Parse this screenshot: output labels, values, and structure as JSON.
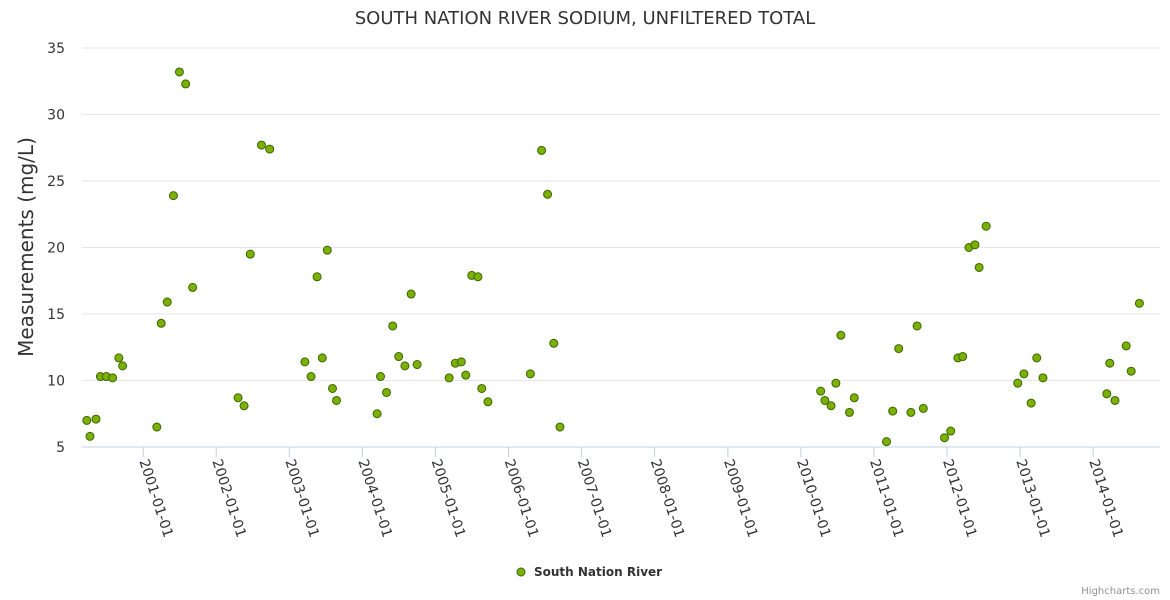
{
  "chart_data": {
    "type": "scatter",
    "title": "SOUTH NATION RIVER SODIUM, UNFILTERED TOTAL",
    "ylabel": "Measurements (mg/L)",
    "xlabel": "",
    "ylim": [
      5,
      35
    ],
    "yticks": [
      5,
      10,
      15,
      20,
      25,
      30,
      35
    ],
    "xlim": [
      "2000-03-01",
      "2014-12-01"
    ],
    "xticks": [
      "2001-01-01",
      "2002-01-01",
      "2003-01-01",
      "2004-01-01",
      "2005-01-01",
      "2006-01-01",
      "2007-01-01",
      "2008-01-01",
      "2009-01-01",
      "2010-01-01",
      "2011-01-01",
      "2012-01-01",
      "2013-01-01",
      "2014-01-01"
    ],
    "grid": true,
    "legend_position": "bottom-center",
    "marker_color": "#7cb005",
    "marker_stroke": "#3a6600",
    "series": [
      {
        "name": "South Nation River",
        "points": [
          [
            "2000-03-25",
            7.0
          ],
          [
            "2000-04-10",
            5.8
          ],
          [
            "2000-05-10",
            7.1
          ],
          [
            "2000-06-01",
            10.3
          ],
          [
            "2000-07-01",
            10.3
          ],
          [
            "2000-08-01",
            10.2
          ],
          [
            "2000-09-01",
            11.7
          ],
          [
            "2000-09-20",
            11.1
          ],
          [
            "2001-03-10",
            6.5
          ],
          [
            "2001-04-01",
            14.3
          ],
          [
            "2001-05-01",
            15.9
          ],
          [
            "2001-06-01",
            23.9
          ],
          [
            "2001-07-01",
            33.2
          ],
          [
            "2001-08-01",
            32.3
          ],
          [
            "2001-09-05",
            17.0
          ],
          [
            "2002-04-20",
            8.7
          ],
          [
            "2002-05-20",
            8.1
          ],
          [
            "2002-06-20",
            19.5
          ],
          [
            "2002-08-15",
            27.7
          ],
          [
            "2002-09-25",
            27.4
          ],
          [
            "2003-03-20",
            11.4
          ],
          [
            "2003-04-20",
            10.3
          ],
          [
            "2003-05-20",
            17.8
          ],
          [
            "2003-06-15",
            11.7
          ],
          [
            "2003-07-10",
            19.8
          ],
          [
            "2003-08-05",
            9.4
          ],
          [
            "2003-08-25",
            8.5
          ],
          [
            "2004-03-15",
            7.5
          ],
          [
            "2004-04-01",
            10.3
          ],
          [
            "2004-05-01",
            9.1
          ],
          [
            "2004-06-01",
            14.1
          ],
          [
            "2004-07-01",
            11.8
          ],
          [
            "2004-08-01",
            11.1
          ],
          [
            "2004-09-01",
            16.5
          ],
          [
            "2004-10-01",
            11.2
          ],
          [
            "2005-03-10",
            10.2
          ],
          [
            "2005-04-10",
            11.3
          ],
          [
            "2005-05-10",
            11.4
          ],
          [
            "2005-06-01",
            10.4
          ],
          [
            "2005-07-01",
            17.9
          ],
          [
            "2005-08-01",
            17.8
          ],
          [
            "2005-08-20",
            9.4
          ],
          [
            "2005-09-20",
            8.4
          ],
          [
            "2006-04-20",
            10.5
          ],
          [
            "2006-06-15",
            27.3
          ],
          [
            "2006-07-15",
            24.0
          ],
          [
            "2006-08-15",
            12.8
          ],
          [
            "2006-09-15",
            6.5
          ],
          [
            "2010-04-10",
            9.2
          ],
          [
            "2010-05-01",
            8.5
          ],
          [
            "2010-06-01",
            8.1
          ],
          [
            "2010-06-25",
            9.8
          ],
          [
            "2010-07-20",
            13.4
          ],
          [
            "2010-09-01",
            7.6
          ],
          [
            "2010-09-25",
            8.7
          ],
          [
            "2011-03-05",
            5.4
          ],
          [
            "2011-04-05",
            7.7
          ],
          [
            "2011-05-05",
            12.4
          ],
          [
            "2011-07-05",
            7.6
          ],
          [
            "2011-08-05",
            14.1
          ],
          [
            "2011-09-05",
            7.9
          ],
          [
            "2011-12-20",
            5.7
          ],
          [
            "2012-01-20",
            6.2
          ],
          [
            "2012-02-25",
            11.7
          ],
          [
            "2012-03-20",
            11.8
          ],
          [
            "2012-04-20",
            20.0
          ],
          [
            "2012-05-20",
            20.2
          ],
          [
            "2012-06-10",
            18.5
          ],
          [
            "2012-07-15",
            21.6
          ],
          [
            "2012-12-20",
            9.8
          ],
          [
            "2013-01-20",
            10.5
          ],
          [
            "2013-02-25",
            8.3
          ],
          [
            "2013-03-25",
            11.7
          ],
          [
            "2013-04-25",
            10.2
          ],
          [
            "2014-03-10",
            9.0
          ],
          [
            "2014-03-25",
            11.3
          ],
          [
            "2014-04-20",
            8.5
          ],
          [
            "2014-06-15",
            12.6
          ],
          [
            "2014-07-10",
            10.7
          ],
          [
            "2014-08-20",
            15.8
          ]
        ]
      }
    ],
    "credits": "Highcharts.com"
  }
}
